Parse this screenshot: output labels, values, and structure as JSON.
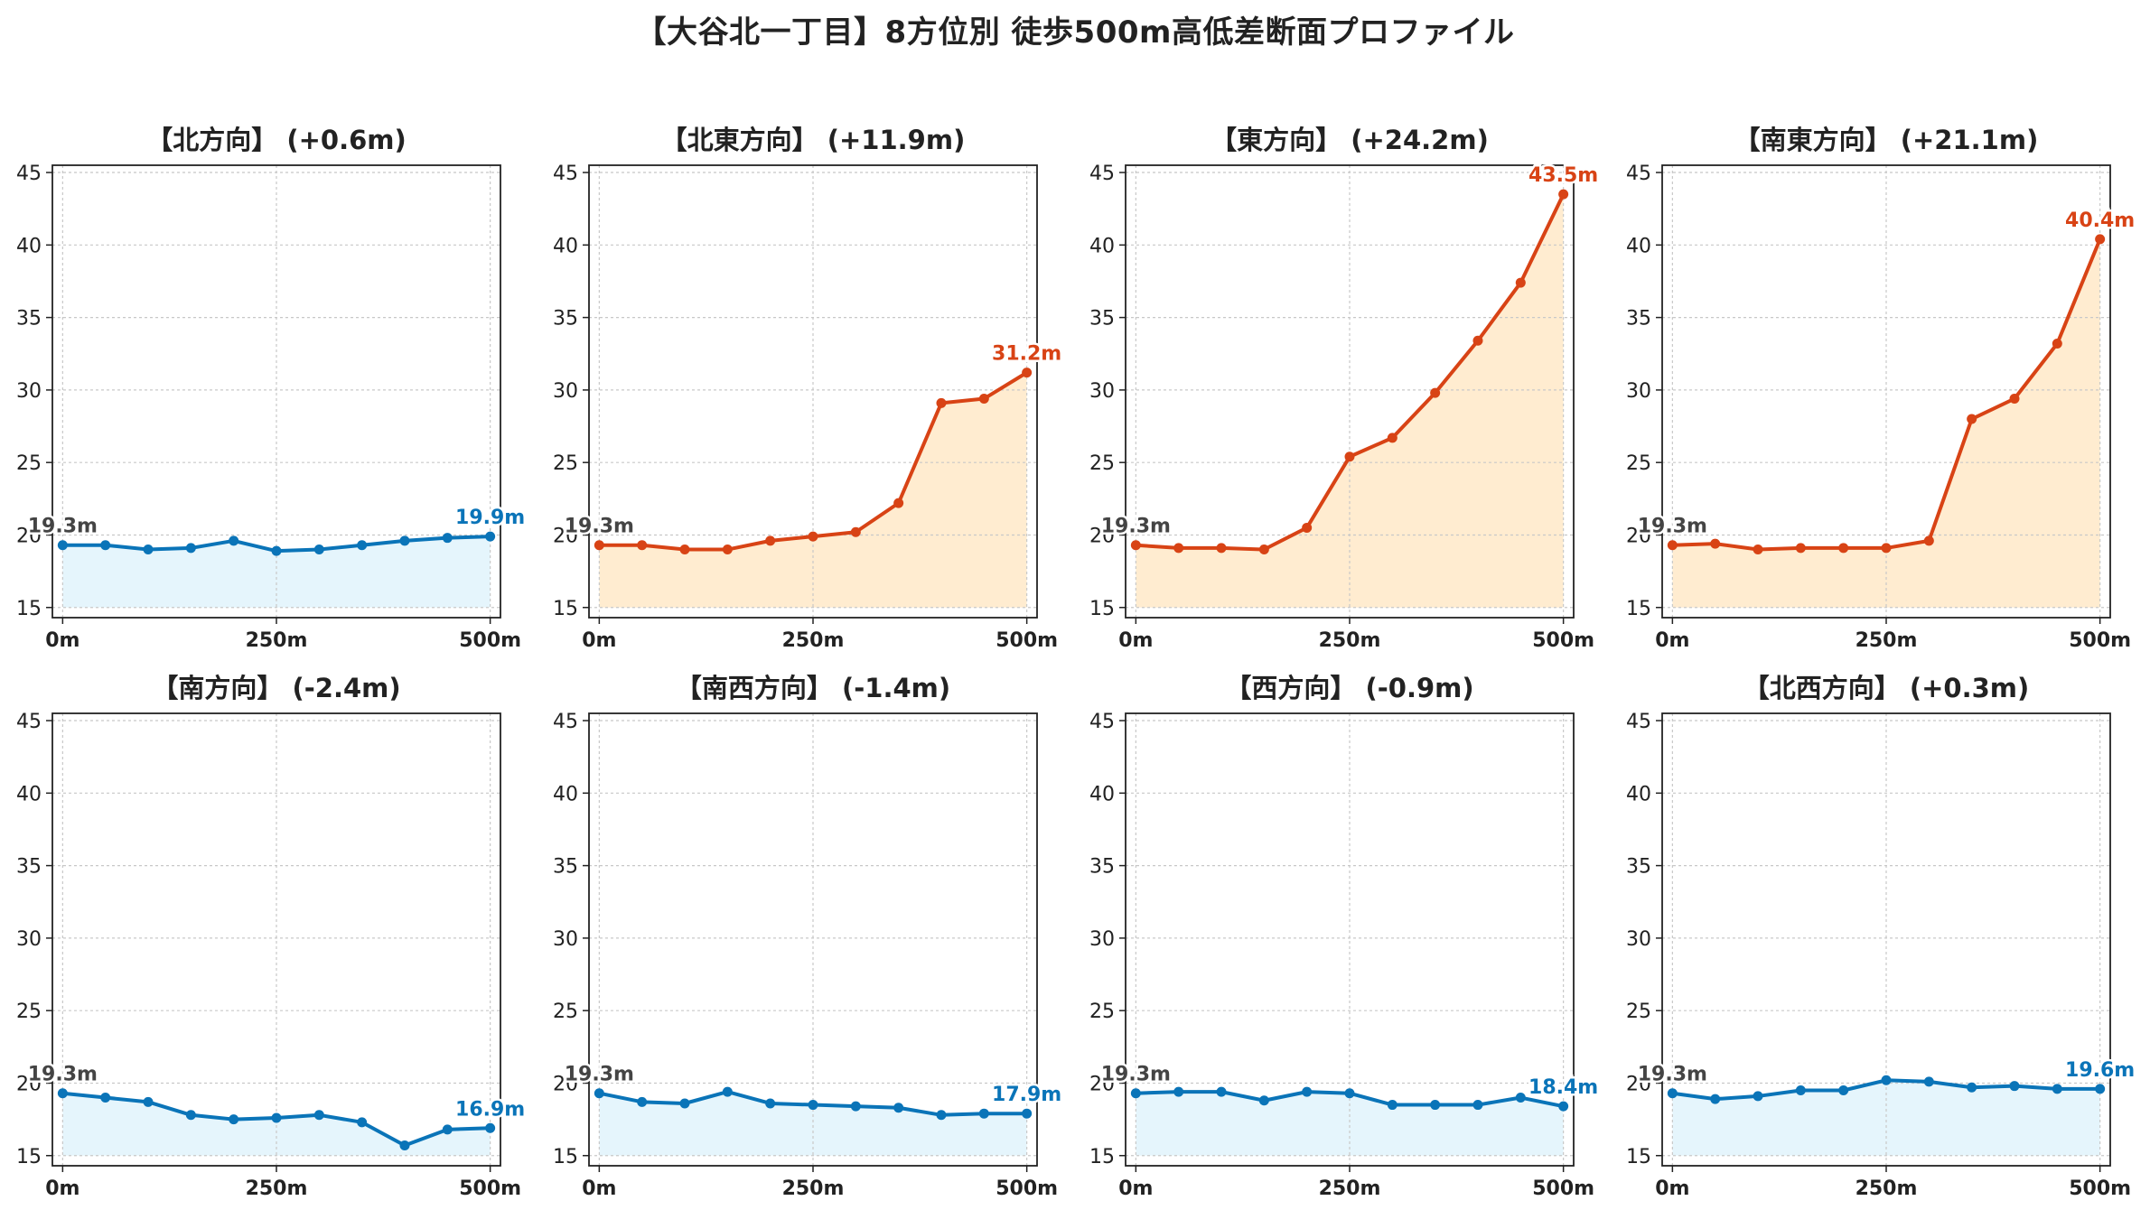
{
  "title": "【大谷北一丁目】8方位別 徒歩500m高低差断面プロファイル",
  "colors": {
    "up_line": "#d84315",
    "up_fill": "#ffecd0",
    "down_line": "#0a74b8",
    "down_fill": "#e5f5fc",
    "start_label": "#444444",
    "grid": "#c8c8c8"
  },
  "chart_data": [
    {
      "type": "area",
      "title": "【北方向】 (+0.6m)",
      "trend": "flat",
      "x": [
        0,
        50,
        100,
        150,
        200,
        250,
        300,
        350,
        400,
        450,
        500
      ],
      "y": [
        19.3,
        19.3,
        19.0,
        19.1,
        19.6,
        18.9,
        19.0,
        19.3,
        19.6,
        19.8,
        19.9
      ],
      "xticks": [
        "0m",
        "250m",
        "500m"
      ],
      "yticks": [
        "15",
        "20",
        "25",
        "30",
        "35",
        "40",
        "45"
      ],
      "ylim": [
        14.3,
        45.5
      ],
      "xlim": [
        -12,
        512
      ],
      "grid": true,
      "start_label": "19.3m",
      "end_label": "19.9m"
    },
    {
      "type": "area",
      "title": "【北東方向】 (+11.9m)",
      "trend": "up",
      "x": [
        0,
        50,
        100,
        150,
        200,
        250,
        300,
        350,
        400,
        450,
        500
      ],
      "y": [
        19.3,
        19.3,
        19.0,
        19.0,
        19.6,
        19.9,
        20.2,
        22.2,
        29.1,
        29.4,
        31.2
      ],
      "xticks": [
        "0m",
        "250m",
        "500m"
      ],
      "yticks": [
        "15",
        "20",
        "25",
        "30",
        "35",
        "40",
        "45"
      ],
      "ylim": [
        14.3,
        45.5
      ],
      "xlim": [
        -12,
        512
      ],
      "grid": true,
      "start_label": "19.3m",
      "end_label": "31.2m"
    },
    {
      "type": "area",
      "title": "【東方向】 (+24.2m)",
      "trend": "up",
      "x": [
        0,
        50,
        100,
        150,
        200,
        250,
        300,
        350,
        400,
        450,
        500
      ],
      "y": [
        19.3,
        19.1,
        19.1,
        19.0,
        20.5,
        25.4,
        26.7,
        29.8,
        33.4,
        37.4,
        43.5
      ],
      "xticks": [
        "0m",
        "250m",
        "500m"
      ],
      "yticks": [
        "15",
        "20",
        "25",
        "30",
        "35",
        "40",
        "45"
      ],
      "ylim": [
        14.3,
        45.5
      ],
      "xlim": [
        -12,
        512
      ],
      "grid": true,
      "start_label": "19.3m",
      "end_label": "43.5m"
    },
    {
      "type": "area",
      "title": "【南東方向】 (+21.1m)",
      "trend": "up",
      "x": [
        0,
        50,
        100,
        150,
        200,
        250,
        300,
        350,
        400,
        450,
        500
      ],
      "y": [
        19.3,
        19.4,
        19.0,
        19.1,
        19.1,
        19.1,
        19.6,
        28.0,
        29.4,
        33.2,
        40.4
      ],
      "xticks": [
        "0m",
        "250m",
        "500m"
      ],
      "yticks": [
        "15",
        "20",
        "25",
        "30",
        "35",
        "40",
        "45"
      ],
      "ylim": [
        14.3,
        45.5
      ],
      "xlim": [
        -12,
        512
      ],
      "grid": true,
      "start_label": "19.3m",
      "end_label": "40.4m"
    },
    {
      "type": "area",
      "title": "【南方向】 (-2.4m)",
      "trend": "flat",
      "x": [
        0,
        50,
        100,
        150,
        200,
        250,
        300,
        350,
        400,
        450,
        500
      ],
      "y": [
        19.3,
        19.0,
        18.7,
        17.8,
        17.5,
        17.6,
        17.8,
        17.3,
        15.7,
        16.8,
        16.9
      ],
      "xticks": [
        "0m",
        "250m",
        "500m"
      ],
      "yticks": [
        "15",
        "20",
        "25",
        "30",
        "35",
        "40",
        "45"
      ],
      "ylim": [
        14.3,
        45.5
      ],
      "xlim": [
        -12,
        512
      ],
      "grid": true,
      "start_label": "19.3m",
      "end_label": "16.9m"
    },
    {
      "type": "area",
      "title": "【南西方向】 (-1.4m)",
      "trend": "flat",
      "x": [
        0,
        50,
        100,
        150,
        200,
        250,
        300,
        350,
        400,
        450,
        500
      ],
      "y": [
        19.3,
        18.7,
        18.6,
        19.4,
        18.6,
        18.5,
        18.4,
        18.3,
        17.8,
        17.9,
        17.9
      ],
      "xticks": [
        "0m",
        "250m",
        "500m"
      ],
      "yticks": [
        "15",
        "20",
        "25",
        "30",
        "35",
        "40",
        "45"
      ],
      "ylim": [
        14.3,
        45.5
      ],
      "xlim": [
        -12,
        512
      ],
      "grid": true,
      "start_label": "19.3m",
      "end_label": "17.9m"
    },
    {
      "type": "area",
      "title": "【西方向】 (-0.9m)",
      "trend": "flat",
      "x": [
        0,
        50,
        100,
        150,
        200,
        250,
        300,
        350,
        400,
        450,
        500
      ],
      "y": [
        19.3,
        19.4,
        19.4,
        18.8,
        19.4,
        19.3,
        18.5,
        18.5,
        18.5,
        19.0,
        18.4
      ],
      "xticks": [
        "0m",
        "250m",
        "500m"
      ],
      "yticks": [
        "15",
        "20",
        "25",
        "30",
        "35",
        "40",
        "45"
      ],
      "ylim": [
        14.3,
        45.5
      ],
      "xlim": [
        -12,
        512
      ],
      "grid": true,
      "start_label": "19.3m",
      "end_label": "18.4m"
    },
    {
      "type": "area",
      "title": "【北西方向】 (+0.3m)",
      "trend": "flat",
      "x": [
        0,
        50,
        100,
        150,
        200,
        250,
        300,
        350,
        400,
        450,
        500
      ],
      "y": [
        19.3,
        18.9,
        19.1,
        19.5,
        19.5,
        20.2,
        20.1,
        19.7,
        19.8,
        19.6,
        19.6
      ],
      "xticks": [
        "0m",
        "250m",
        "500m"
      ],
      "yticks": [
        "15",
        "20",
        "25",
        "30",
        "35",
        "40",
        "45"
      ],
      "ylim": [
        14.3,
        45.5
      ],
      "xlim": [
        -12,
        512
      ],
      "grid": true,
      "start_label": "19.3m",
      "end_label": "19.6m"
    }
  ]
}
